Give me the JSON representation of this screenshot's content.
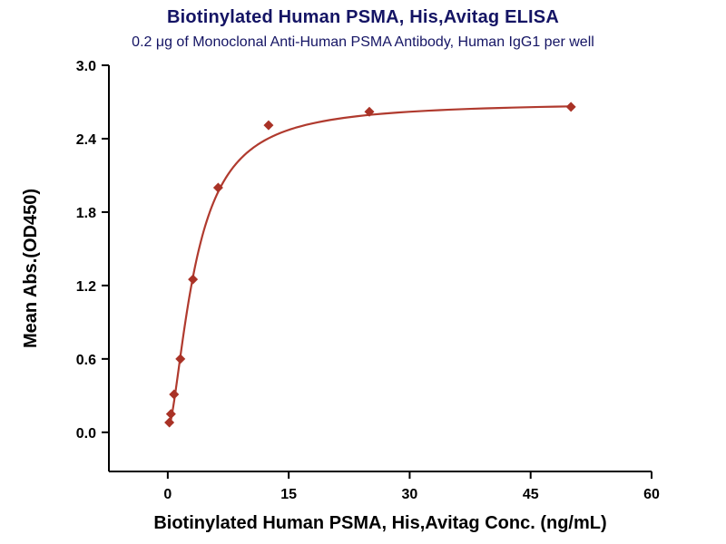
{
  "chart_data": {
    "type": "scatter",
    "title": "Biotinylated Human PSMA, His,Avitag ELISA",
    "subtitle": "0.2 μg of Monoclonal Anti-Human PSMA Antibody, Human IgG1 per well",
    "xlabel": "Biotinylated Human PSMA, His,Avitag Conc. (ng/mL)",
    "ylabel": "Mean Abs.(OD450)",
    "x_ticks": [
      0,
      15,
      30,
      45,
      60
    ],
    "y_ticks": [
      0.0,
      0.6,
      1.2,
      1.8,
      2.4,
      3.0
    ],
    "xlim": [
      -7.3,
      60
    ],
    "ylim": [
      -0.32,
      3.0
    ],
    "grid": false,
    "legend": null,
    "points": [
      {
        "x": 0.195,
        "y": 0.08
      },
      {
        "x": 0.39,
        "y": 0.15
      },
      {
        "x": 0.78,
        "y": 0.31
      },
      {
        "x": 1.563,
        "y": 0.6
      },
      {
        "x": 3.125,
        "y": 1.25
      },
      {
        "x": 6.25,
        "y": 2.0
      },
      {
        "x": 12.5,
        "y": 2.51
      },
      {
        "x": 25,
        "y": 2.62
      },
      {
        "x": 50,
        "y": 2.66
      }
    ],
    "fit_4pl": {
      "min": 0.02,
      "max": 2.7,
      "ec50": 3.4,
      "hill": 1.6
    },
    "colors": {
      "curve": "#b03a2e",
      "marker": "#a93226",
      "title": "#141464",
      "subtitle": "#141464",
      "axis": "#000000"
    }
  }
}
